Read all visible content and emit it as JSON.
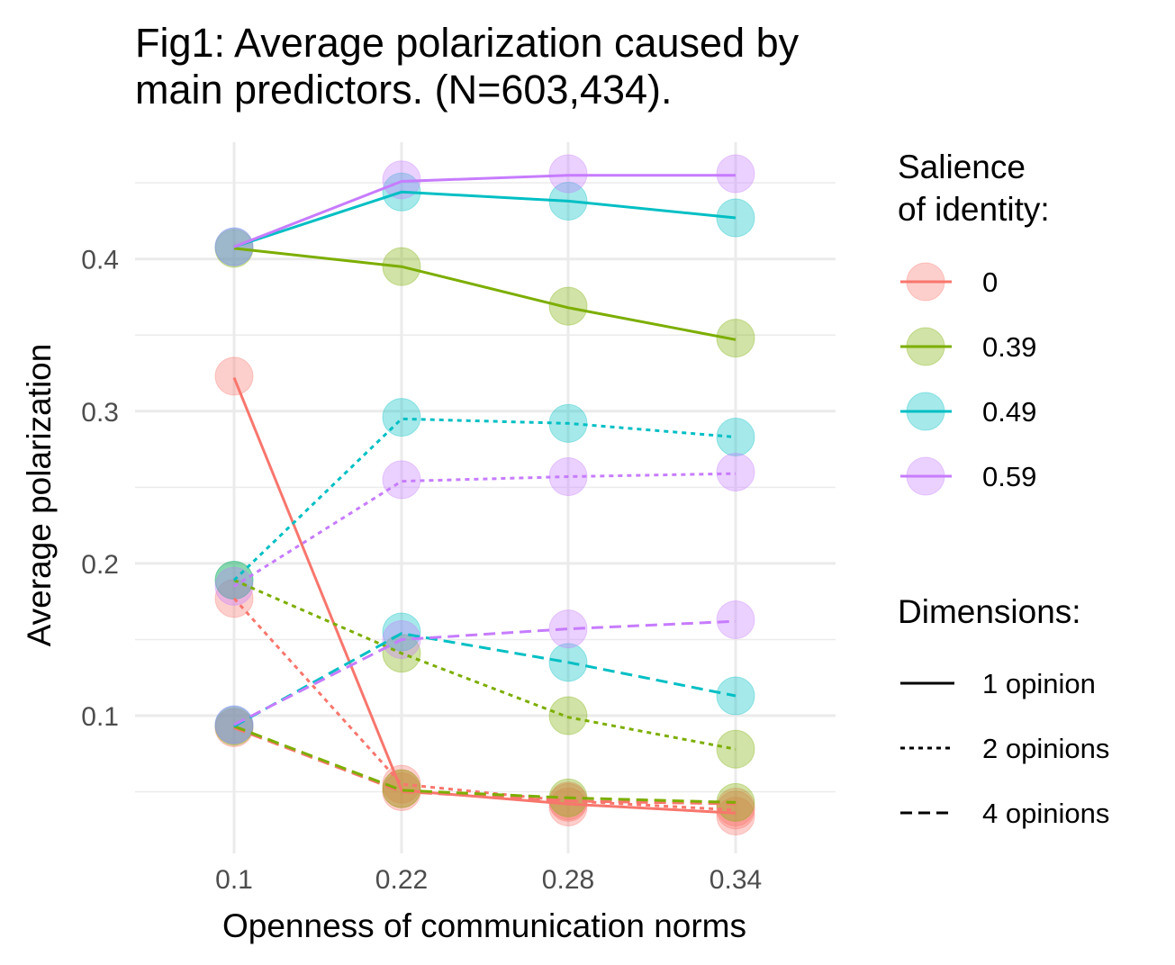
{
  "title_lines": [
    "Fig1: Average polarization caused by",
    "main predictors. (N=603,434)."
  ],
  "chart_data": {
    "type": "line",
    "title": "Fig1: Average polarization caused by main predictors. (N=603,434).",
    "xlabel": "Openness of communication norms",
    "ylabel": "Average polarization",
    "x": [
      0.1,
      0.22,
      0.28,
      0.34
    ],
    "x_tick_labels": [
      "0.1",
      "0.22",
      "0.28",
      "0.34"
    ],
    "y_ticks": [
      0.1,
      0.2,
      0.3,
      0.4
    ],
    "y_tick_labels": [
      "0.1",
      "0.2",
      "0.3",
      "0.4"
    ],
    "ylim": [
      0.025,
      0.475
    ],
    "grid": true,
    "legend_placement": "right",
    "color_legend": {
      "title_lines": [
        "Salience",
        "of identity:"
      ],
      "entries": [
        {
          "label": "0",
          "color": "#F8766D"
        },
        {
          "label": "0.39",
          "color": "#7CAE00"
        },
        {
          "label": "0.49",
          "color": "#00BFC4"
        },
        {
          "label": "0.59",
          "color": "#C77CFF"
        }
      ]
    },
    "linetype_legend": {
      "title": "Dimensions:",
      "entries": [
        {
          "label": "1 opinion",
          "dash": "solid"
        },
        {
          "label": "2 opinions",
          "dash": "dotted"
        },
        {
          "label": "4 opinions",
          "dash": "dashed"
        }
      ]
    },
    "series": [
      {
        "salience": "0",
        "dimensions": "1 opinion",
        "color": "#F8766D",
        "dash": "solid",
        "values": [
          0.322,
          0.051,
          0.042,
          0.036
        ],
        "points": [
          0.323,
          0.052,
          0.04,
          0.034
        ]
      },
      {
        "salience": "0.39",
        "dimensions": "1 opinion",
        "color": "#7CAE00",
        "dash": "solid",
        "values": [
          0.407,
          0.395,
          0.368,
          0.347
        ],
        "points": [
          0.407,
          0.395,
          0.369,
          0.348
        ]
      },
      {
        "salience": "0.49",
        "dimensions": "1 opinion",
        "color": "#00BFC4",
        "dash": "solid",
        "values": [
          0.408,
          0.444,
          0.438,
          0.427
        ],
        "points": [
          0.408,
          0.444,
          0.438,
          0.427
        ]
      },
      {
        "salience": "0.59",
        "dimensions": "1 opinion",
        "color": "#C77CFF",
        "dash": "solid",
        "values": [
          0.408,
          0.451,
          0.455,
          0.455
        ],
        "points": [
          0.408,
          0.452,
          0.456,
          0.456
        ]
      },
      {
        "salience": "0",
        "dimensions": "2 opinions",
        "color": "#F8766D",
        "dash": "dotted",
        "values": [
          0.177,
          0.055,
          0.044,
          0.038
        ],
        "points": [
          0.177,
          0.055,
          0.044,
          0.038
        ]
      },
      {
        "salience": "0.39",
        "dimensions": "2 opinions",
        "color": "#7CAE00",
        "dash": "dotted",
        "values": [
          0.189,
          0.141,
          0.099,
          0.078
        ],
        "points": [
          0.189,
          0.141,
          0.1,
          0.078
        ]
      },
      {
        "salience": "0.49",
        "dimensions": "2 opinions",
        "color": "#00BFC4",
        "dash": "dotted",
        "values": [
          0.189,
          0.295,
          0.292,
          0.283
        ],
        "points": [
          0.189,
          0.296,
          0.292,
          0.283
        ]
      },
      {
        "salience": "0.59",
        "dimensions": "2 opinions",
        "color": "#C77CFF",
        "dash": "dotted",
        "values": [
          0.185,
          0.254,
          0.257,
          0.259
        ],
        "points": [
          0.185,
          0.255,
          0.257,
          0.26
        ]
      },
      {
        "salience": "0",
        "dimensions": "4 opinions",
        "color": "#F8766D",
        "dash": "dashed",
        "values": [
          0.092,
          0.05,
          0.044,
          0.042
        ],
        "points": [
          0.092,
          0.05,
          0.043,
          0.04
        ]
      },
      {
        "salience": "0.39",
        "dimensions": "4 opinions",
        "color": "#7CAE00",
        "dash": "dashed",
        "values": [
          0.093,
          0.051,
          0.046,
          0.043
        ],
        "points": [
          0.093,
          0.052,
          0.046,
          0.043
        ]
      },
      {
        "salience": "0.49",
        "dimensions": "4 opinions",
        "color": "#00BFC4",
        "dash": "dashed",
        "values": [
          0.093,
          0.154,
          0.135,
          0.113
        ],
        "points": [
          0.094,
          0.155,
          0.135,
          0.113
        ]
      },
      {
        "salience": "0.59",
        "dimensions": "4 opinions",
        "color": "#C77CFF",
        "dash": "dashed",
        "values": [
          0.094,
          0.15,
          0.157,
          0.162
        ],
        "points": [
          0.094,
          0.15,
          0.157,
          0.163
        ]
      }
    ]
  }
}
